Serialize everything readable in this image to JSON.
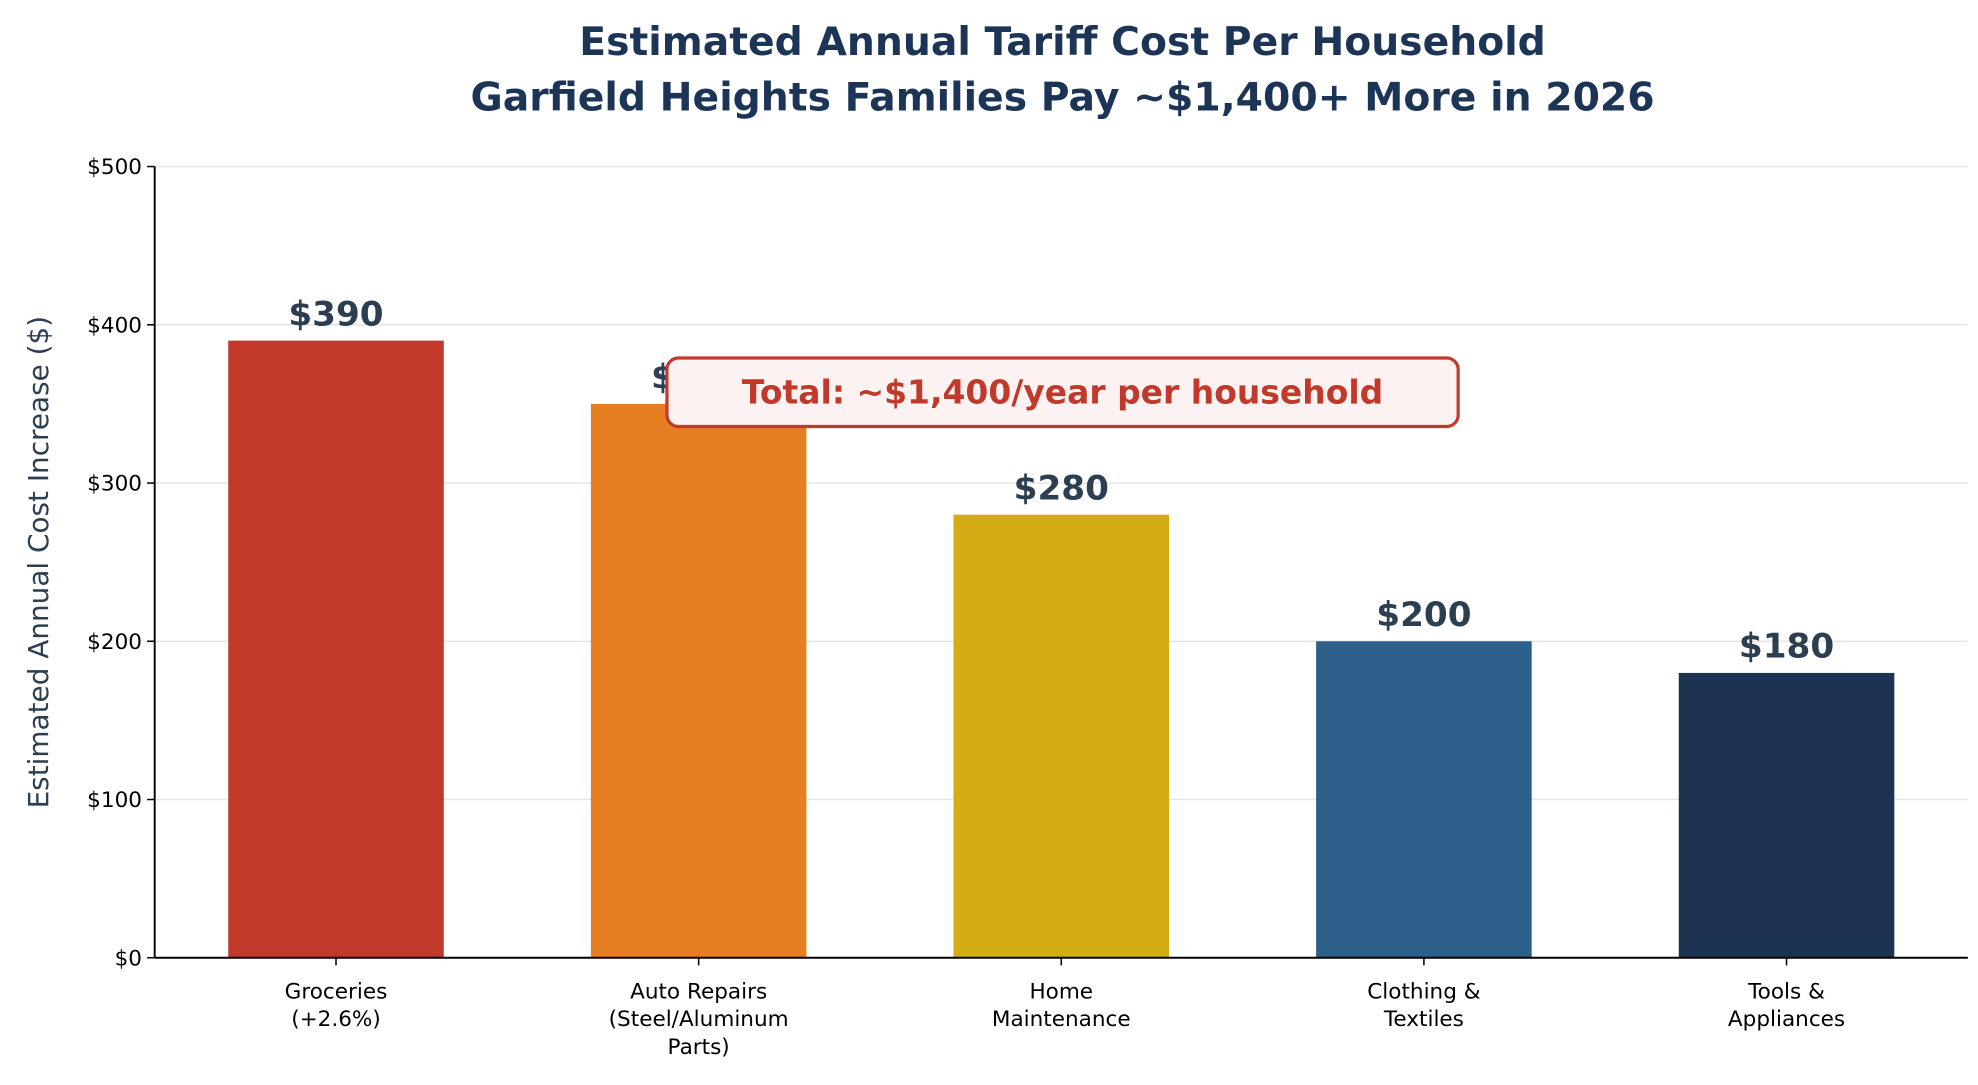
{
  "chart_data": {
    "type": "bar",
    "title": "Estimated Annual Tariff Cost Per Household",
    "subtitle": "Garfield Heights Families Pay ~$1,400+ More in 2026",
    "xlabel": "",
    "ylabel": "Estimated Annual Cost Increase ($)",
    "ylim": [
      0,
      500
    ],
    "yticks": [
      0,
      100,
      200,
      300,
      400,
      500
    ],
    "ytick_labels": [
      "$0",
      "$100",
      "$200",
      "$300",
      "$400",
      "$500"
    ],
    "grid": "horizontal",
    "categories": [
      [
        "Groceries",
        "(+2.6%)"
      ],
      [
        "Auto Repairs",
        "(Steel/Aluminum",
        "Parts)"
      ],
      [
        "Home",
        "Maintenance"
      ],
      [
        "Clothing &",
        "Textiles"
      ],
      [
        "Tools &",
        "Appliances"
      ]
    ],
    "values": [
      390,
      350,
      280,
      200,
      180
    ],
    "data_labels": [
      "$390",
      "$350",
      "$280",
      "$200",
      "$180"
    ],
    "colors": [
      "#c0392b",
      "#e67e22",
      "#d4ac16",
      "#2c5f8a",
      "#1c3451"
    ],
    "annotation": {
      "text": "Total: ~$1,400/year per household",
      "color": "#c0392b",
      "background": "#fdf2f2"
    }
  }
}
